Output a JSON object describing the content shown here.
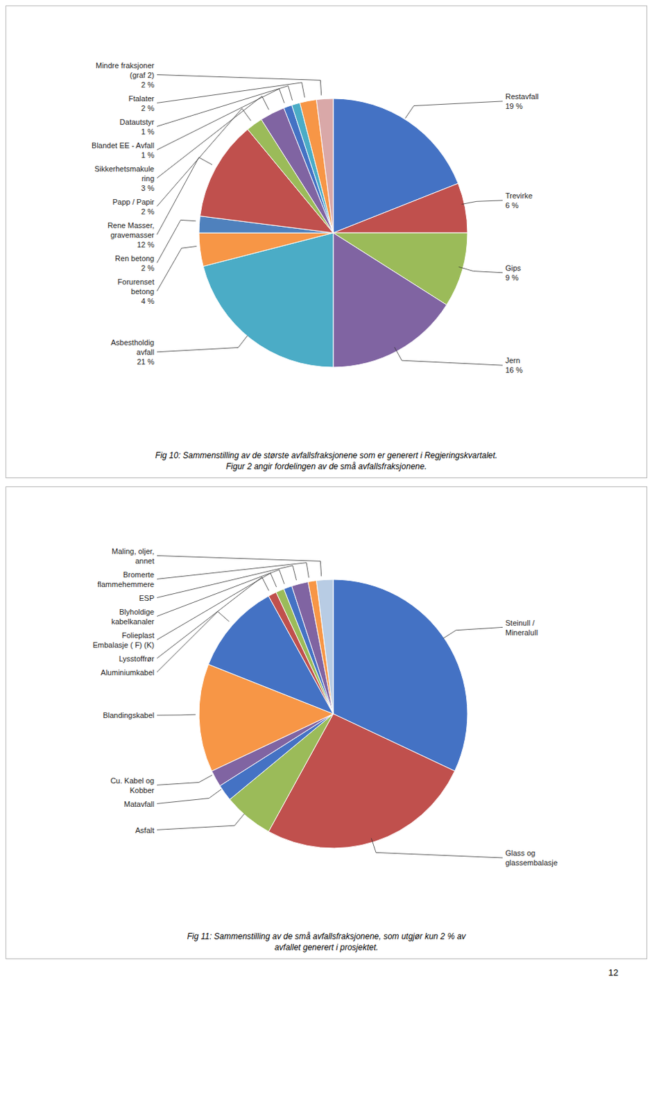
{
  "chart_data": [
    {
      "type": "pie",
      "categories": [
        "Restavfall",
        "Trevirke",
        "Gips",
        "Jern",
        "Asbestholdig\navfall",
        "Forurenset\nbetong",
        "Ren betong",
        "Rene Masser,\ngravemasser",
        "Papp / Papir",
        "Sikkerhetsmakule\nring",
        "Blandet EE - Avfall",
        "Datautstyr",
        "Ftalater",
        "Mindre fraksjoner\n(graf 2)"
      ],
      "values": [
        19,
        6,
        9,
        16,
        21,
        4,
        2,
        12,
        2,
        3,
        1,
        1,
        2,
        2
      ],
      "value_labels": [
        "19 %",
        "6 %",
        "9 %",
        "16 %",
        "21 %",
        "4 %",
        "2 %",
        "12 %",
        "2 %",
        "3 %",
        "1 %",
        "1 %",
        "2 %",
        "2 %"
      ],
      "data_labels": true,
      "colors": [
        "#4472C4",
        "#C0504D",
        "#9BBB59",
        "#8064A2",
        "#4BACC6",
        "#F79646",
        "#4F81BD",
        "#C0504D",
        "#9BBB59",
        "#8064A2",
        "#4472C4",
        "#4BACC6",
        "#F79646",
        "#D9A8A8"
      ],
      "caption": "Fig 10: Sammenstilling av de største avfallsfraksjonene som er generert i Regjeringskvartalet.\nFigur 2 angir fordelingen av de små avfallsfraksjonene."
    },
    {
      "type": "pie",
      "categories": [
        "Steinull /\nMineralull",
        "Glass og\nglassembalasje",
        "Asfalt",
        "Matavfall",
        "Cu. Kabel og\nKobber",
        "Blandingskabel",
        "Aluminiumkabel",
        "Lysstoffrør",
        "Folieplast\nEmbalasje ( F) (K)",
        "Blyholdige\nkabelkanaler",
        "ESP",
        "Bromerte\nflammehemmere",
        "Maling, oljer,\nannet"
      ],
      "values": [
        32,
        26,
        6,
        2,
        2,
        13,
        11,
        1,
        1,
        1,
        2,
        1,
        2
      ],
      "colors": [
        "#4472C4",
        "#C0504D",
        "#9BBB59",
        "#4472C4",
        "#8064A2",
        "#F79646",
        "#4472C4",
        "#C0504D",
        "#9BBB59",
        "#4472C4",
        "#8064A2",
        "#F79646",
        "#B8CCE4"
      ],
      "caption": "Fig 11: Sammenstilling av de små avfallsfraksjonene, som utgjør kun 2 % av\navfallet generert i prosjektet.",
      "annotations": [
        "12"
      ]
    }
  ]
}
